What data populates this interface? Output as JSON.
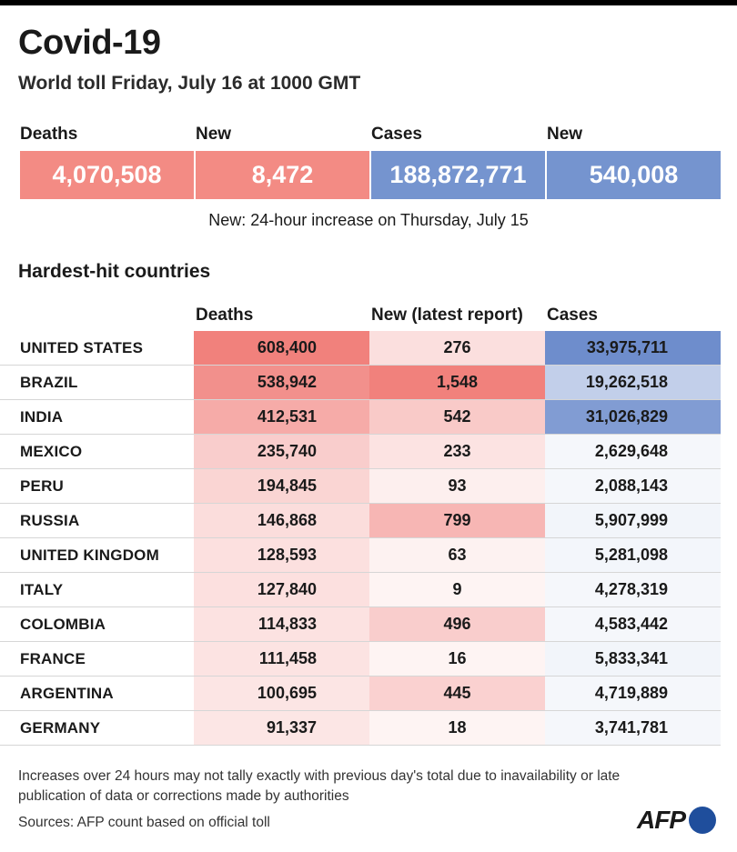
{
  "header": {
    "title": "Covid-19",
    "subtitle": "World toll Friday, July 16 at 1000 GMT"
  },
  "summary": {
    "items": [
      {
        "label": "Deaths",
        "value": "4,070,508",
        "color": "#f38b84"
      },
      {
        "label": "New",
        "value": "8,472",
        "color": "#f38b84"
      },
      {
        "label": "Cases",
        "value": "188,872,771",
        "color": "#7594cf"
      },
      {
        "label": "New",
        "value": "540,008",
        "color": "#7594cf"
      }
    ],
    "note": "New: 24-hour increase on Thursday, July 15"
  },
  "chart_data": {
    "type": "table",
    "title": "Hardest-hit countries",
    "columns": [
      "Deaths",
      "New (latest report)",
      "Cases"
    ],
    "rows": [
      {
        "country": "UNITED STATES",
        "deaths": "608,400",
        "new": "276",
        "cases": "33,975,711"
      },
      {
        "country": "BRAZIL",
        "deaths": "538,942",
        "new": "1,548",
        "cases": "19,262,518"
      },
      {
        "country": "INDIA",
        "deaths": "412,531",
        "new": "542",
        "cases": "31,026,829"
      },
      {
        "country": "MEXICO",
        "deaths": "235,740",
        "new": "233",
        "cases": "2,629,648"
      },
      {
        "country": "PERU",
        "deaths": "194,845",
        "new": "93",
        "cases": "2,088,143"
      },
      {
        "country": "RUSSIA",
        "deaths": "146,868",
        "new": "799",
        "cases": "5,907,999"
      },
      {
        "country": "UNITED KINGDOM",
        "deaths": "128,593",
        "new": "63",
        "cases": "5,281,098"
      },
      {
        "country": "ITALY",
        "deaths": "127,840",
        "new": "9",
        "cases": "4,278,319"
      },
      {
        "country": "COLOMBIA",
        "deaths": "114,833",
        "new": "496",
        "cases": "4,583,442"
      },
      {
        "country": "FRANCE",
        "deaths": "111,458",
        "new": "16",
        "cases": "5,833,341"
      },
      {
        "country": "ARGENTINA",
        "deaths": "100,695",
        "new": "445",
        "cases": "4,719,889"
      },
      {
        "country": "GERMANY",
        "deaths": "91,337",
        "new": "18",
        "cases": "3,741,781"
      }
    ],
    "colors": {
      "deaths_scale": "#f07a75",
      "new_scale": "#f07a75",
      "cases_scale": "#6b8bcb"
    }
  },
  "footer": {
    "footnote": "Increases over 24 hours may not tally exactly with previous day's total due to inavailability or late publication of data or corrections made by authorities",
    "sources": "Sources: AFP count based on official toll",
    "logo_text": "AFP"
  }
}
